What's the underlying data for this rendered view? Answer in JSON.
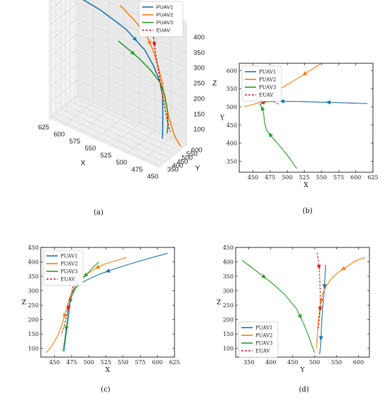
{
  "colors": {
    "PUAV1": "#1f77b4",
    "PUAV2": "#ff7f0e",
    "PUAV3": "#2ca02c",
    "EUAV": "#d62728"
  },
  "chart_data": [
    {
      "panel": "a",
      "type": "line",
      "projection": "3d",
      "caption": "(a)",
      "xlabel": "X",
      "ylabel": "Y",
      "zlabel": "Z",
      "x_ticks": [
        "450",
        "475",
        "500",
        "525",
        "550",
        "575",
        "600",
        "625"
      ],
      "y_ticks": [
        "350",
        "400",
        "450",
        "500",
        "550",
        "600"
      ],
      "z_ticks": [
        "100",
        "150",
        "200",
        "250",
        "300",
        "350",
        "400"
      ],
      "legend": {
        "placement": "top-right",
        "entries": [
          "PUAV1",
          "PUAV2",
          "PUAV3",
          "EUAV"
        ]
      },
      "series": [
        {
          "name": "PUAV1",
          "x": [
            615,
            570,
            530,
            500,
            485,
            475,
            470,
            468,
            466,
            465
          ],
          "y": [
            510,
            513,
            515,
            515,
            513,
            510,
            505,
            495,
            480,
            470
          ],
          "z": [
            420,
            405,
            380,
            340,
            300,
            260,
            220,
            170,
            120,
            95
          ]
        },
        {
          "name": "PUAV2",
          "x": [
            555,
            530,
            505,
            490,
            480,
            472,
            468,
            460,
            450,
            440
          ],
          "y": [
            615,
            590,
            565,
            540,
            525,
            515,
            510,
            505,
            500,
            498
          ],
          "z": [
            410,
            395,
            370,
            340,
            300,
            260,
            220,
            160,
            110,
            85
          ]
        },
        {
          "name": "PUAV3",
          "x": [
            515,
            505,
            490,
            478,
            470,
            465,
            462,
            463,
            465
          ],
          "y": [
            335,
            360,
            395,
            440,
            480,
            495,
            505,
            515,
            520
          ],
          "z": [
            400,
            380,
            350,
            310,
            270,
            230,
            180,
            130,
            100
          ]
        },
        {
          "name": "EUAV",
          "x": [
            487,
            485,
            482,
            478,
            474,
            470,
            466,
            463,
            460
          ],
          "y": [
            505,
            507,
            509,
            511,
            513,
            515,
            517,
            518,
            519
          ],
          "z": [
            430,
            400,
            350,
            300,
            250,
            200,
            160,
            130,
            110
          ]
        }
      ]
    },
    {
      "panel": "b",
      "type": "line",
      "caption": "(b)",
      "xlabel": "X",
      "ylabel": "Y",
      "xlim": [
        430,
        625
      ],
      "ylim": [
        320,
        620
      ],
      "x_ticks": [
        450,
        475,
        500,
        525,
        550,
        575,
        600,
        625
      ],
      "y_ticks": [
        350,
        400,
        450,
        500,
        550,
        600
      ],
      "grid": false,
      "legend": {
        "placement": "top-left",
        "entries": [
          "PUAV1",
          "PUAV2",
          "PUAV3",
          "EUAV"
        ]
      },
      "series": [
        {
          "name": "PUAV1",
          "x": [
            617,
            600,
            570,
            550,
            530,
            510,
            497,
            488,
            482,
            478,
            476
          ],
          "y": [
            509,
            510,
            512,
            513,
            514,
            515,
            515,
            516,
            517,
            517,
            518
          ]
        },
        {
          "name": "PUAV2",
          "x": [
            549,
            535,
            515,
            497,
            480,
            468,
            458,
            445,
            437
          ],
          "y": [
            619,
            602,
            578,
            558,
            538,
            521,
            511,
            504,
            500
          ]
        },
        {
          "name": "PUAV3",
          "x": [
            514,
            504,
            492,
            480,
            470,
            467,
            466,
            465,
            462,
            460,
            463,
            469,
            474
          ],
          "y": [
            330,
            357,
            386,
            412,
            435,
            455,
            475,
            490,
            502,
            507,
            511,
            514,
            514
          ]
        },
        {
          "name": "EUAV",
          "x": [
            462,
            465,
            468,
            472,
            476,
            480,
            484,
            488
          ],
          "y": [
            507,
            512,
            516,
            519,
            518,
            515,
            511,
            507
          ]
        }
      ]
    },
    {
      "panel": "c",
      "type": "line",
      "caption": "(c)",
      "xlabel": "X",
      "ylabel": "Z",
      "xlim": [
        430,
        625
      ],
      "ylim": [
        70,
        450
      ],
      "x_ticks": [
        450,
        475,
        500,
        525,
        550,
        575,
        600,
        625
      ],
      "y_ticks": [
        100,
        150,
        200,
        250,
        300,
        350,
        400,
        450
      ],
      "grid": false,
      "legend": {
        "placement": "top-left",
        "entries": [
          "PUAV1",
          "PUAV2",
          "PUAV3",
          "EUAV"
        ]
      },
      "series": [
        {
          "name": "PUAV1",
          "x": [
            615,
            600,
            570,
            540,
            515,
            495,
            480,
            474,
            472,
            470,
            467,
            465,
            464
          ],
          "y": [
            430,
            420,
            400,
            378,
            357,
            335,
            310,
            285,
            245,
            200,
            150,
            110,
            90
          ]
        },
        {
          "name": "PUAV2",
          "x": [
            555,
            540,
            520,
            505,
            490,
            478,
            472,
            467,
            462,
            455,
            445,
            438
          ],
          "y": [
            415,
            405,
            390,
            370,
            345,
            310,
            275,
            235,
            190,
            145,
            105,
            85
          ]
        },
        {
          "name": "PUAV3",
          "x": [
            515,
            508,
            500,
            490,
            480,
            473,
            470,
            468,
            466,
            464,
            463,
            462
          ],
          "y": [
            400,
            385,
            365,
            340,
            305,
            270,
            230,
            190,
            150,
            115,
            100,
            90
          ]
        },
        {
          "name": "EUAV",
          "x": [
            487,
            485,
            482,
            479,
            476,
            472,
            468,
            464,
            460
          ],
          "y": [
            435,
            410,
            380,
            345,
            305,
            262,
            218,
            178,
            148
          ]
        }
      ]
    },
    {
      "panel": "d",
      "type": "line",
      "caption": "(d)",
      "xlabel": "Y",
      "ylabel": "Z",
      "xlim": [
        320,
        625
      ],
      "ylim": [
        70,
        450
      ],
      "x_ticks": [
        350,
        400,
        450,
        500,
        550,
        600
      ],
      "y_ticks": [
        100,
        150,
        200,
        250,
        300,
        350,
        400,
        450
      ],
      "grid": false,
      "legend": {
        "placement": "bottom-left",
        "entries": [
          "PUAV1",
          "PUAV2",
          "PUAV3",
          "EUAV"
        ]
      },
      "series": [
        {
          "name": "PUAV1",
          "x": [
            525,
            524,
            523,
            522,
            520,
            518,
            516,
            515,
            514,
            513,
            512,
            511
          ],
          "y": [
            390,
            360,
            330,
            300,
            270,
            230,
            190,
            150,
            120,
            100,
            85,
            80
          ]
        },
        {
          "name": "PUAV2",
          "x": [
            615,
            595,
            575,
            555,
            540,
            528,
            518,
            512,
            508,
            506,
            504
          ],
          "y": [
            415,
            405,
            385,
            365,
            345,
            320,
            290,
            240,
            190,
            140,
            100
          ]
        },
        {
          "name": "PUAV3",
          "x": [
            335,
            350,
            370,
            400,
            430,
            460,
            475,
            487,
            495,
            500
          ],
          "y": [
            405,
            388,
            365,
            330,
            290,
            235,
            185,
            140,
            105,
            85
          ]
        },
        {
          "name": "EUAV",
          "x": [
            506,
            509,
            511,
            512,
            513,
            513,
            512,
            510,
            508
          ],
          "y": [
            432,
            400,
            365,
            330,
            295,
            255,
            220,
            190,
            165
          ]
        }
      ]
    }
  ]
}
